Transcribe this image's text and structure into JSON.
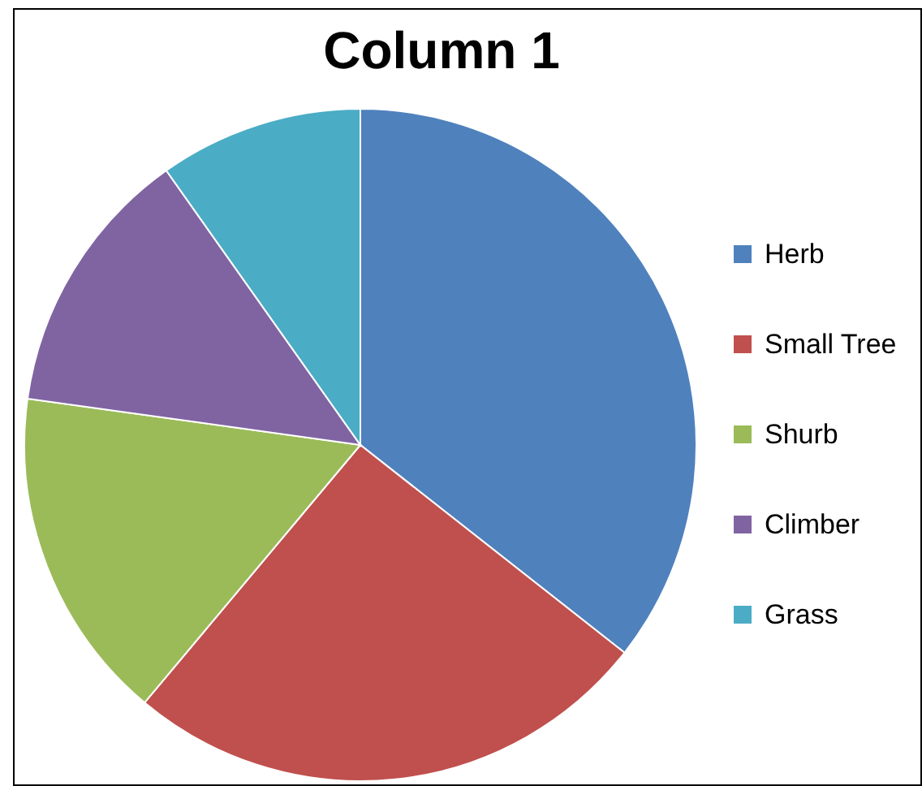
{
  "chart_data": {
    "type": "pie",
    "title": "Column 1",
    "categories": [
      "Herb",
      "Small Tree",
      "Shurb",
      "Climber",
      "Grass"
    ],
    "values": [
      35.6,
      25.5,
      16.1,
      13.0,
      9.8
    ],
    "colors": [
      "#4f81bd",
      "#c0504d",
      "#9bbb59",
      "#8064a2",
      "#4bacc6"
    ],
    "legend": "right"
  }
}
